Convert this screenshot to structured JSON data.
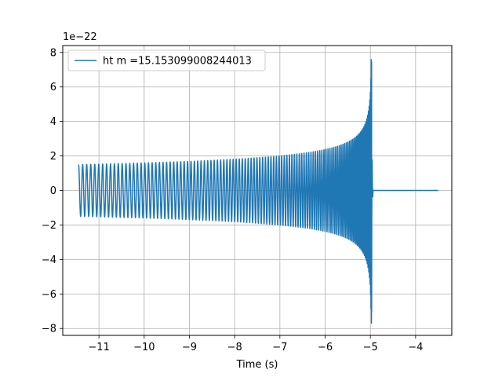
{
  "chart_data": {
    "type": "line",
    "title": "",
    "xlabel": "Time (s)",
    "ylabel": "",
    "y_offset_label": "1e−22",
    "x_tick_labels": [
      "−11",
      "−10",
      "−9",
      "−8",
      "−7",
      "−6",
      "−5",
      "−4"
    ],
    "y_tick_labels": [
      "−8",
      "−6",
      "−4",
      "−2",
      "0",
      "2",
      "4",
      "6",
      "8"
    ],
    "x_ticks": [
      -11,
      -10,
      -9,
      -8,
      -7,
      -6,
      -5,
      -4
    ],
    "y_ticks": [
      -8,
      -6,
      -4,
      -2,
      0,
      2,
      4,
      6,
      8
    ],
    "xlim": [
      -11.8,
      -3.2
    ],
    "ylim": [
      -8.4,
      8.4
    ],
    "grid": true,
    "legend_position": "upper-left",
    "series": [
      {
        "name": "ht m =15.153099008244013",
        "color": "#1f77b4",
        "x_start": -11.45,
        "merger_time": -4.97,
        "x_end": -3.5,
        "initial_amplitude": 1.5,
        "peak_amplitude": 7.8,
        "peak_min": -7.6
      }
    ]
  }
}
